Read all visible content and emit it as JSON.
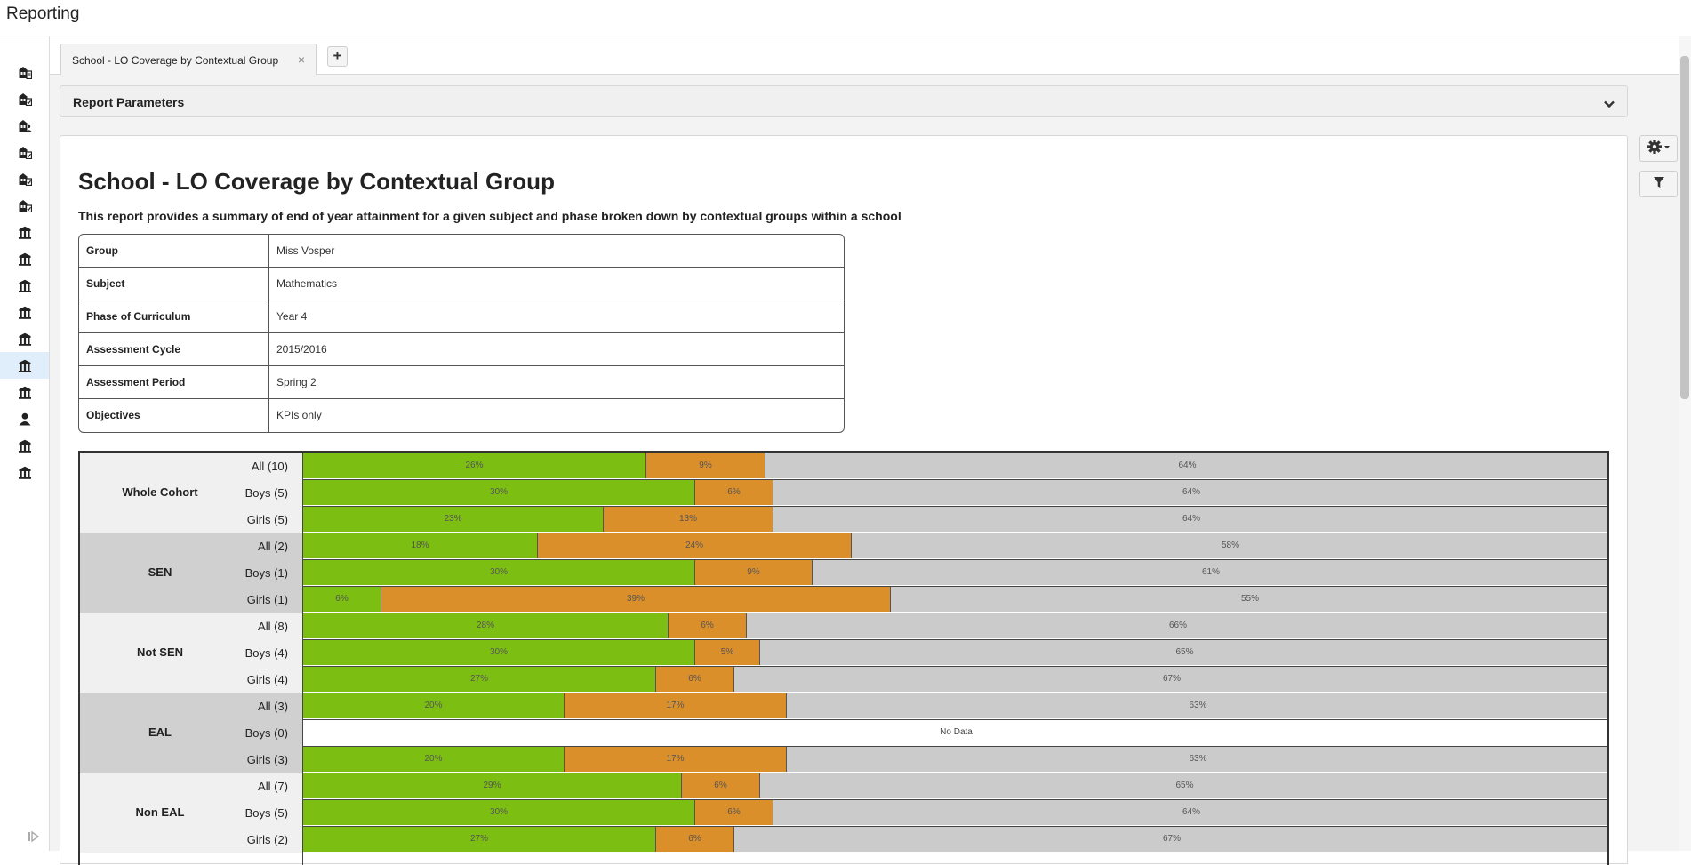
{
  "app": {
    "title": "Reporting"
  },
  "sidebar": {
    "items": [
      {
        "icon": "school-report-icon",
        "active": false
      },
      {
        "icon": "school-check-icon",
        "active": false
      },
      {
        "icon": "school-person-icon",
        "active": false
      },
      {
        "icon": "school-check-icon",
        "active": false
      },
      {
        "icon": "school-check-icon",
        "active": false
      },
      {
        "icon": "school-check-icon",
        "active": false
      },
      {
        "icon": "school-building-icon",
        "active": false
      },
      {
        "icon": "school-building-icon",
        "active": false
      },
      {
        "icon": "school-building-icon",
        "active": false
      },
      {
        "icon": "school-building-icon",
        "active": false
      },
      {
        "icon": "school-building-icon",
        "active": false
      },
      {
        "icon": "school-building-icon",
        "active": true
      },
      {
        "icon": "school-building-icon",
        "active": false
      },
      {
        "icon": "person-icon",
        "active": false
      },
      {
        "icon": "school-building-icon",
        "active": false
      },
      {
        "icon": "school-building-icon",
        "active": false
      }
    ]
  },
  "tabs": [
    {
      "label": "School - LO Coverage by Contextual Group",
      "close": "×"
    }
  ],
  "add_tab_label": "+",
  "params_panel": {
    "title": "Report Parameters"
  },
  "report": {
    "title": "School - LO Coverage by Contextual Group",
    "description": "This report provides a summary of end of year attainment for a given subject and phase broken down by contextual groups within a school",
    "parameters": [
      {
        "key": "Group",
        "value": "Miss Vosper"
      },
      {
        "key": "Subject",
        "value": "Mathematics"
      },
      {
        "key": "Phase of Curriculum",
        "value": "Year 4"
      },
      {
        "key": "Assessment Cycle",
        "value": "2015/2016"
      },
      {
        "key": "Assessment Period",
        "value": "Spring 2"
      },
      {
        "key": "Objectives",
        "value": "KPIs only"
      }
    ]
  },
  "colors": {
    "green": "#7cbf12",
    "orange": "#db8f2b",
    "grey": "#cbcbcb"
  },
  "chart_data": {
    "type": "bar",
    "stacked": true,
    "orientation": "horizontal",
    "groups": [
      {
        "name": "Whole Cohort",
        "rows": [
          {
            "label": "All (10)",
            "values": [
              26,
              9,
              64
            ]
          },
          {
            "label": "Boys (5)",
            "values": [
              30,
              6,
              64
            ]
          },
          {
            "label": "Girls (5)",
            "values": [
              23,
              13,
              64
            ]
          }
        ]
      },
      {
        "name": "SEN",
        "rows": [
          {
            "label": "All (2)",
            "values": [
              18,
              24,
              58
            ]
          },
          {
            "label": "Boys (1)",
            "values": [
              30,
              9,
              61
            ]
          },
          {
            "label": "Girls (1)",
            "values": [
              6,
              39,
              55
            ]
          }
        ]
      },
      {
        "name": "Not SEN",
        "rows": [
          {
            "label": "All (8)",
            "values": [
              28,
              6,
              66
            ]
          },
          {
            "label": "Boys (4)",
            "values": [
              30,
              5,
              65
            ]
          },
          {
            "label": "Girls (4)",
            "values": [
              27,
              6,
              67
            ]
          }
        ]
      },
      {
        "name": "EAL",
        "rows": [
          {
            "label": "All (3)",
            "values": [
              20,
              17,
              63
            ]
          },
          {
            "label": "Boys (0)",
            "values": null,
            "no_data": "No Data"
          },
          {
            "label": "Girls (3)",
            "values": [
              20,
              17,
              63
            ]
          }
        ]
      },
      {
        "name": "Non EAL",
        "rows": [
          {
            "label": "All (7)",
            "values": [
              29,
              6,
              65
            ]
          },
          {
            "label": "Boys (5)",
            "values": [
              30,
              6,
              64
            ]
          },
          {
            "label": "Girls (2)",
            "values": [
              27,
              6,
              67
            ]
          }
        ]
      }
    ]
  }
}
